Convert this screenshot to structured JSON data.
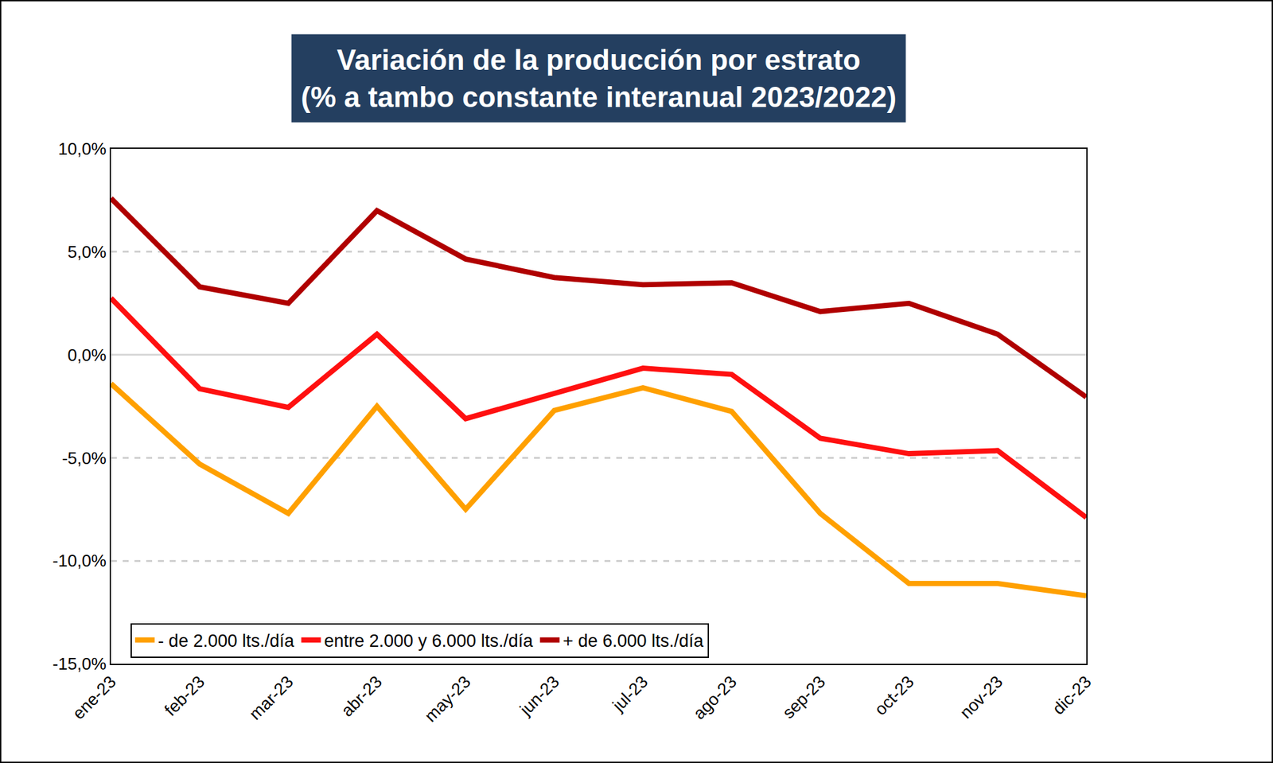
{
  "chart_data": {
    "type": "line",
    "title": "Variación de la producción por estrato\n(% a tambo constante interanual 2023/2022)",
    "categories": [
      "ene-23",
      "feb-23",
      "mar-23",
      "abr-23",
      "may-23",
      "jun-23",
      "jul-23",
      "ago-23",
      "sep-23",
      "oct-23",
      "nov-23",
      "dic-23"
    ],
    "series": [
      {
        "name": "- de 2.000 lts./día",
        "color": "#FFA000",
        "values": [
          -1.4,
          -5.3,
          -7.7,
          -2.5,
          -7.5,
          -2.7,
          -1.6,
          -2.75,
          -7.7,
          -11.1,
          -11.1,
          -11.7
        ]
      },
      {
        "name": "entre 2.000 y 6.000 lts./día",
        "color": "#FF1010",
        "values": [
          2.75,
          -1.65,
          -2.55,
          1.0,
          -3.1,
          -1.85,
          -0.65,
          -0.95,
          -4.05,
          -4.8,
          -4.65,
          -7.9
        ]
      },
      {
        "name": "+ de 6.000 lts./día",
        "color": "#B00000",
        "values": [
          7.6,
          3.3,
          2.5,
          7.0,
          4.65,
          3.75,
          3.4,
          3.5,
          2.1,
          2.5,
          1.0,
          -2.05
        ]
      }
    ],
    "ylim": [
      -15,
      10
    ],
    "yticks": [
      {
        "value": -15,
        "label": "-15,0%"
      },
      {
        "value": -10,
        "label": "-10,0%"
      },
      {
        "value": -5,
        "label": "-5,0%"
      },
      {
        "value": 0,
        "label": "0,0%"
      },
      {
        "value": 5,
        "label": "5,0%"
      },
      {
        "value": 10,
        "label": "10,0%"
      }
    ],
    "grid": true,
    "legend": "bottom"
  }
}
